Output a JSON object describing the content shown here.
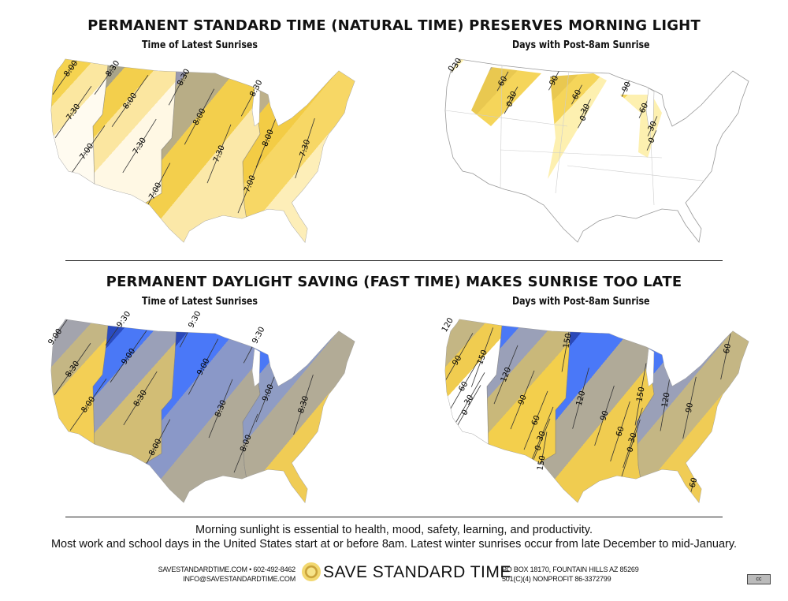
{
  "top_section": {
    "title": "PERMANENT STANDARD TIME (NATURAL TIME) PRESERVES MORNING LIGHT",
    "left_subtitle": "Time of Latest Sunrises",
    "right_subtitle": "Days with Post-8am Sunrise"
  },
  "bottom_section": {
    "title": "PERMANENT DAYLIGHT SAVING (FAST TIME) MAKES SUNRISE TOO LATE",
    "left_subtitle": "Time of Latest Sunrises",
    "right_subtitle": "Days with Post-8am Sunrise"
  },
  "maps": [
    {
      "name": "standard-time-latest-sunrise",
      "labels": [
        "8:00",
        "8:30",
        "7:30",
        "8:00",
        "7:00",
        "7:30",
        "8:30",
        "8:00",
        "7:00",
        "7:30",
        "8:30",
        "8:00",
        "7:00",
        "7:30"
      ],
      "zone_colors": [
        [
          "#b9ae8a",
          "#d8c070",
          "#f5d350",
          "#fbe7a0",
          "#fffbf0"
        ],
        [
          "#8d96bd",
          "#a8a48a",
          "#f3cf4c",
          "#fbe6a0",
          "#fff8e4"
        ],
        [
          "#6d86ea",
          "#9a9ab0",
          "#b8ad86",
          "#f3cf4c",
          "#fbe8a8"
        ],
        [
          "#9c9ca6",
          "#bdb08a",
          "#f3cc45",
          "#f7d765",
          "#fdeeb8"
        ]
      ]
    },
    {
      "name": "standard-time-days-post-8am",
      "labels": [
        "30",
        "0",
        "60",
        "30",
        "0",
        "90",
        "60",
        "30",
        "0",
        "90",
        "60",
        "30",
        "0"
      ],
      "zone_colors": [
        [
          "#9aa0b8",
          "#bcb08a",
          "#e9c850",
          "#f5d55a",
          "#fdf0b0"
        ]
      ]
    },
    {
      "name": "daylight-time-latest-sunrise",
      "labels": [
        "9:00",
        "9:30",
        "8:30",
        "9:00",
        "8:00",
        "8:30",
        "9:30",
        "9:00",
        "8:00",
        "8:30",
        "9:30",
        "9:00",
        "8:00",
        "8:30"
      ],
      "zone_colors": [
        [
          "#4a78f2",
          "#7f92d0",
          "#a3a4ad",
          "#c4b684",
          "#f3cf55"
        ],
        [
          "#1c2f78",
          "#2a4bc0",
          "#4a78f6",
          "#9aa0b8",
          "#d2bd75"
        ],
        [
          "#0e1c50",
          "#2a48b8",
          "#4a78f8",
          "#8a98c8",
          "#b0aa98"
        ],
        [
          "#2444b0",
          "#4a78f6",
          "#8f9cc4",
          "#b2ab96",
          "#f0cc55"
        ]
      ]
    },
    {
      "name": "daylight-time-days-post-8am",
      "labels": [
        "120",
        "90",
        "150",
        "60",
        "30",
        "0",
        "120",
        "150",
        "90",
        "60",
        "30",
        "0",
        "150",
        "120",
        "90",
        "60",
        "30",
        "0",
        "150",
        "120",
        "90",
        "60",
        "60"
      ],
      "zone_colors": [
        [
          "#4a78f2",
          "#9aa0b8",
          "#c4b684",
          "#f0cc50",
          "#ffffff"
        ],
        [
          "#1c2f78",
          "#4a78f6",
          "#9aa0b8",
          "#c9b87a",
          "#f3cf4c"
        ],
        [
          "#0e1c50",
          "#2a48b8",
          "#4a78f8",
          "#b0aa98",
          "#f0cc50"
        ],
        [
          "#1c2f78",
          "#4a78f6",
          "#9aa0b8",
          "#c4b684",
          "#f0cc55"
        ]
      ]
    }
  ],
  "footer": {
    "line1": "Morning sunlight is essential to health, mood, safety, learning, and productivity.",
    "line2": "Most work and school days in the United States start at or before 8am. Latest winter sunrises occur from late December to mid-January.",
    "contact_web_phone": "SAVESTANDARDTIME.COM • 602-492-8462",
    "contact_email": "INFO@SAVESTANDARDTIME.COM",
    "brand": "SAVE STANDARD TIME",
    "address": "PO BOX 18170, FOUNTAIN HILLS AZ 85269",
    "nonprofit": "501(C)(4) NONPROFIT 86-3372799",
    "license_badge": "cc"
  }
}
